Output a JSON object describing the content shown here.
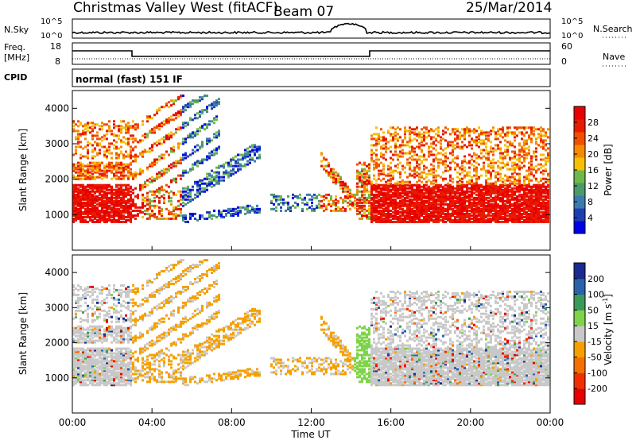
{
  "header": {
    "station": "Christmas Valley West (fitACF)",
    "beam": "Beam 07",
    "date": "25/Mar/2014"
  },
  "strip_labels": {
    "nsky": "N.Sky",
    "freq_line1": "Freq.",
    "freq_line2": "[MHz]",
    "cpid": "CPID",
    "nsearch": "N.Search",
    "nave": "Nave",
    "cpid_value": "normal (fast) 151 IF"
  },
  "noise_axis": {
    "top": "10^5",
    "bottom": "10^0"
  },
  "freq_axis": {
    "left_top": "18",
    "left_bottom": "8",
    "right_top": "60",
    "right_bottom": "0"
  },
  "colors": {
    "power": [
      "#0000e6",
      "#1e3fb0",
      "#3b7bb0",
      "#4a9a6a",
      "#6fb84a",
      "#f5c000",
      "#f58a00",
      "#f05000",
      "#e81a00",
      "#e80000"
    ],
    "velocity": [
      "#e80000",
      "#f03000",
      "#f57000",
      "#f5a000",
      "#c8c8c8",
      "#7fd34a",
      "#3a9a5a",
      "#2a62a8",
      "#1a2a90"
    ],
    "ground_scatter": "#c8c8c8"
  },
  "chart_data": [
    {
      "type": "heatmap",
      "name": "power_panel",
      "ylabel": "Slant Range [km]",
      "yticks": [
        "1000",
        "2000",
        "3000",
        "4000"
      ],
      "ylim": [
        0,
        4500
      ],
      "xlim_hours": [
        0,
        24
      ],
      "colorbar_label": "Power [dB]",
      "colorbar_ticks": [
        "4",
        "8",
        "12",
        "16",
        "20",
        "24",
        "28"
      ],
      "colorbar_range": [
        0,
        32
      ]
    },
    {
      "type": "heatmap",
      "name": "velocity_panel",
      "ylabel": "Slant Range [km]",
      "yticks": [
        "1000",
        "2000",
        "3000",
        "4000"
      ],
      "ylim": [
        0,
        4500
      ],
      "xlim_hours": [
        0,
        24
      ],
      "colorbar_label": "Velocity [m s",
      "colorbar_label_sup": "-1",
      "colorbar_label_end": "]",
      "colorbar_ticks": [
        "-200",
        "-100",
        "-50",
        "-15",
        "15",
        "50",
        "100",
        "200"
      ]
    }
  ],
  "xaxis": {
    "ticks": [
      "00:00",
      "04:00",
      "08:00",
      "12:00",
      "16:00",
      "20:00",
      "00:00"
    ],
    "label": "Time UT"
  }
}
